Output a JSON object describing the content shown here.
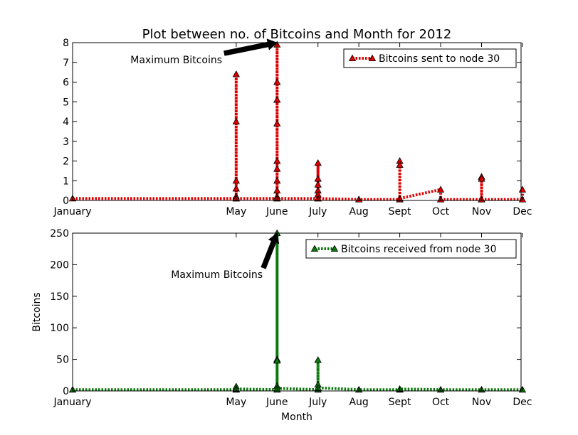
{
  "figure": {
    "title": "Plot between no. of Bitcoins and Month for 2012",
    "xlabel": "Month",
    "ylabel": "Bitcoins"
  },
  "colors": {
    "sent": "#e00000",
    "received": "#0a7a0a",
    "axis": "#000000",
    "background": "#ffffff"
  },
  "chart_data": [
    {
      "type": "line",
      "title": "Plot between no. of Bitcoins and Month for 2012",
      "xlabel": "",
      "ylabel": "",
      "line_style": "dashed",
      "marker": "triangle-up",
      "ylim": [
        0,
        8
      ],
      "yticks": [
        0,
        1,
        2,
        3,
        4,
        5,
        6,
        7,
        8
      ],
      "xticks": [
        "January",
        "May",
        "June",
        "July",
        "Aug",
        "Sept",
        "Oct",
        "Nov",
        "Dec"
      ],
      "legend": {
        "label": "Bitcoins sent to node 30",
        "position": "top-right"
      },
      "annotation": {
        "text": "Maximum Bitcoins",
        "points_to": {
          "month": "June",
          "value": 8.0
        }
      },
      "series": [
        {
          "name": "Bitcoins sent to node 30",
          "color": "#e00000",
          "points": [
            {
              "month": "January",
              "value": 0.1
            },
            {
              "month": "May",
              "value": 0.1
            },
            {
              "month": "May",
              "value": 6.4
            },
            {
              "month": "May",
              "value": 4.0
            },
            {
              "month": "May",
              "value": 1.0
            },
            {
              "month": "May",
              "value": 0.6
            },
            {
              "month": "May",
              "value": 0.2
            },
            {
              "month": "May",
              "value": 0.1
            },
            {
              "month": "June",
              "value": 0.1
            },
            {
              "month": "June",
              "value": 7.9
            },
            {
              "month": "June",
              "value": 6.0
            },
            {
              "month": "June",
              "value": 5.1
            },
            {
              "month": "June",
              "value": 3.9
            },
            {
              "month": "June",
              "value": 2.0
            },
            {
              "month": "June",
              "value": 1.6
            },
            {
              "month": "June",
              "value": 1.0
            },
            {
              "month": "June",
              "value": 0.5
            },
            {
              "month": "June",
              "value": 0.2
            },
            {
              "month": "June",
              "value": 0.1
            },
            {
              "month": "July",
              "value": 0.1
            },
            {
              "month": "July",
              "value": 1.9
            },
            {
              "month": "July",
              "value": 1.1
            },
            {
              "month": "July",
              "value": 0.8
            },
            {
              "month": "July",
              "value": 0.5
            },
            {
              "month": "July",
              "value": 0.3
            },
            {
              "month": "July",
              "value": 0.1
            },
            {
              "month": "Aug",
              "value": 0.05
            },
            {
              "month": "Sept",
              "value": 0.05
            },
            {
              "month": "Sept",
              "value": 2.0
            },
            {
              "month": "Sept",
              "value": 1.8
            },
            {
              "month": "Sept",
              "value": 0.1
            },
            {
              "month": "Oct",
              "value": 0.55
            },
            {
              "month": "Oct",
              "value": 0.05
            },
            {
              "month": "Nov",
              "value": 0.05
            },
            {
              "month": "Nov",
              "value": 1.2
            },
            {
              "month": "Nov",
              "value": 1.1
            },
            {
              "month": "Nov",
              "value": 0.05
            },
            {
              "month": "Dec",
              "value": 0.05
            },
            {
              "month": "Dec",
              "value": 0.55
            }
          ]
        }
      ]
    },
    {
      "type": "line",
      "title": "",
      "xlabel": "Month",
      "ylabel": "Bitcoins",
      "line_style": "dashed",
      "marker": "triangle-up",
      "ylim": [
        0,
        250
      ],
      "yticks": [
        0,
        50,
        100,
        150,
        200,
        250
      ],
      "xticks": [
        "January",
        "May",
        "June",
        "July",
        "Aug",
        "Sept",
        "Oct",
        "Nov",
        "Dec"
      ],
      "legend": {
        "label": "Bitcoins received from node 30",
        "position": "top-right"
      },
      "annotation": {
        "text": "Maximum Bitcoins",
        "points_to": {
          "month": "June",
          "value": 250
        }
      },
      "series": [
        {
          "name": "Bitcoins received from node 30",
          "color": "#0a7a0a",
          "points": [
            {
              "month": "January",
              "value": 2
            },
            {
              "month": "May",
              "value": 2
            },
            {
              "month": "May",
              "value": 7
            },
            {
              "month": "May",
              "value": 3
            },
            {
              "month": "June",
              "value": 2
            },
            {
              "month": "June",
              "value": 250
            },
            {
              "month": "June",
              "value": 50
            },
            {
              "month": "June",
              "value": 48
            },
            {
              "month": "June",
              "value": 8
            },
            {
              "month": "June",
              "value": 4
            },
            {
              "month": "July",
              "value": 2
            },
            {
              "month": "July",
              "value": 49
            },
            {
              "month": "July",
              "value": 10
            },
            {
              "month": "July",
              "value": 5
            },
            {
              "month": "Aug",
              "value": 2
            },
            {
              "month": "Sept",
              "value": 2
            },
            {
              "month": "Sept",
              "value": 3
            },
            {
              "month": "Oct",
              "value": 2
            },
            {
              "month": "Nov",
              "value": 2
            },
            {
              "month": "Dec",
              "value": 2
            }
          ]
        }
      ]
    }
  ]
}
